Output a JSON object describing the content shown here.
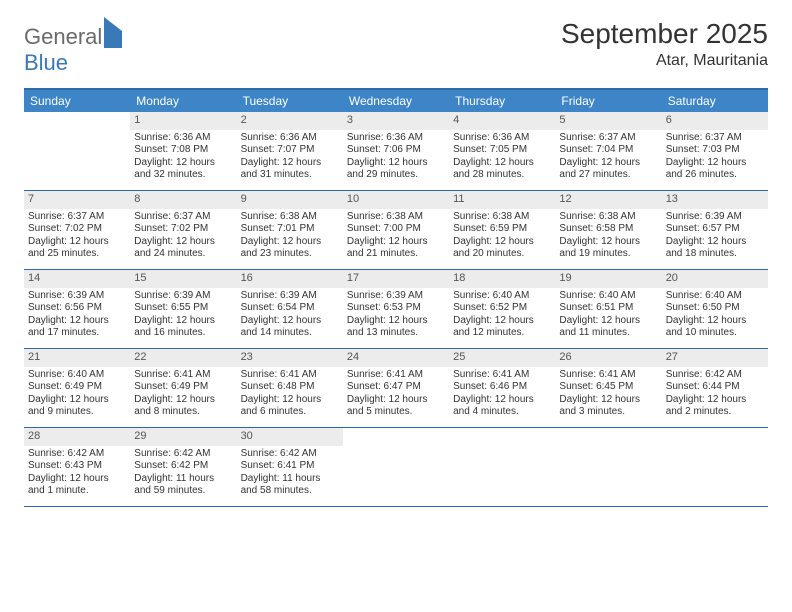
{
  "brand": {
    "part1": "General",
    "part2": "Blue"
  },
  "title": "September 2025",
  "location": "Atar, Mauritania",
  "colors": {
    "header_bg": "#3d85c6",
    "header_text": "#ffffff",
    "rule": "#2f6aa8",
    "daynum_bg": "#ececec",
    "body_text": "#333333",
    "brand_gray": "#6b6b6b",
    "brand_blue": "#3a79b7",
    "page_bg": "#ffffff"
  },
  "day_headers": [
    "Sunday",
    "Monday",
    "Tuesday",
    "Wednesday",
    "Thursday",
    "Friday",
    "Saturday"
  ],
  "weeks": [
    [
      null,
      {
        "n": "1",
        "sr": "Sunrise: 6:36 AM",
        "ss": "Sunset: 7:08 PM",
        "d1": "Daylight: 12 hours",
        "d2": "and 32 minutes."
      },
      {
        "n": "2",
        "sr": "Sunrise: 6:36 AM",
        "ss": "Sunset: 7:07 PM",
        "d1": "Daylight: 12 hours",
        "d2": "and 31 minutes."
      },
      {
        "n": "3",
        "sr": "Sunrise: 6:36 AM",
        "ss": "Sunset: 7:06 PM",
        "d1": "Daylight: 12 hours",
        "d2": "and 29 minutes."
      },
      {
        "n": "4",
        "sr": "Sunrise: 6:36 AM",
        "ss": "Sunset: 7:05 PM",
        "d1": "Daylight: 12 hours",
        "d2": "and 28 minutes."
      },
      {
        "n": "5",
        "sr": "Sunrise: 6:37 AM",
        "ss": "Sunset: 7:04 PM",
        "d1": "Daylight: 12 hours",
        "d2": "and 27 minutes."
      },
      {
        "n": "6",
        "sr": "Sunrise: 6:37 AM",
        "ss": "Sunset: 7:03 PM",
        "d1": "Daylight: 12 hours",
        "d2": "and 26 minutes."
      }
    ],
    [
      {
        "n": "7",
        "sr": "Sunrise: 6:37 AM",
        "ss": "Sunset: 7:02 PM",
        "d1": "Daylight: 12 hours",
        "d2": "and 25 minutes."
      },
      {
        "n": "8",
        "sr": "Sunrise: 6:37 AM",
        "ss": "Sunset: 7:02 PM",
        "d1": "Daylight: 12 hours",
        "d2": "and 24 minutes."
      },
      {
        "n": "9",
        "sr": "Sunrise: 6:38 AM",
        "ss": "Sunset: 7:01 PM",
        "d1": "Daylight: 12 hours",
        "d2": "and 23 minutes."
      },
      {
        "n": "10",
        "sr": "Sunrise: 6:38 AM",
        "ss": "Sunset: 7:00 PM",
        "d1": "Daylight: 12 hours",
        "d2": "and 21 minutes."
      },
      {
        "n": "11",
        "sr": "Sunrise: 6:38 AM",
        "ss": "Sunset: 6:59 PM",
        "d1": "Daylight: 12 hours",
        "d2": "and 20 minutes."
      },
      {
        "n": "12",
        "sr": "Sunrise: 6:38 AM",
        "ss": "Sunset: 6:58 PM",
        "d1": "Daylight: 12 hours",
        "d2": "and 19 minutes."
      },
      {
        "n": "13",
        "sr": "Sunrise: 6:39 AM",
        "ss": "Sunset: 6:57 PM",
        "d1": "Daylight: 12 hours",
        "d2": "and 18 minutes."
      }
    ],
    [
      {
        "n": "14",
        "sr": "Sunrise: 6:39 AM",
        "ss": "Sunset: 6:56 PM",
        "d1": "Daylight: 12 hours",
        "d2": "and 17 minutes."
      },
      {
        "n": "15",
        "sr": "Sunrise: 6:39 AM",
        "ss": "Sunset: 6:55 PM",
        "d1": "Daylight: 12 hours",
        "d2": "and 16 minutes."
      },
      {
        "n": "16",
        "sr": "Sunrise: 6:39 AM",
        "ss": "Sunset: 6:54 PM",
        "d1": "Daylight: 12 hours",
        "d2": "and 14 minutes."
      },
      {
        "n": "17",
        "sr": "Sunrise: 6:39 AM",
        "ss": "Sunset: 6:53 PM",
        "d1": "Daylight: 12 hours",
        "d2": "and 13 minutes."
      },
      {
        "n": "18",
        "sr": "Sunrise: 6:40 AM",
        "ss": "Sunset: 6:52 PM",
        "d1": "Daylight: 12 hours",
        "d2": "and 12 minutes."
      },
      {
        "n": "19",
        "sr": "Sunrise: 6:40 AM",
        "ss": "Sunset: 6:51 PM",
        "d1": "Daylight: 12 hours",
        "d2": "and 11 minutes."
      },
      {
        "n": "20",
        "sr": "Sunrise: 6:40 AM",
        "ss": "Sunset: 6:50 PM",
        "d1": "Daylight: 12 hours",
        "d2": "and 10 minutes."
      }
    ],
    [
      {
        "n": "21",
        "sr": "Sunrise: 6:40 AM",
        "ss": "Sunset: 6:49 PM",
        "d1": "Daylight: 12 hours",
        "d2": "and 9 minutes."
      },
      {
        "n": "22",
        "sr": "Sunrise: 6:41 AM",
        "ss": "Sunset: 6:49 PM",
        "d1": "Daylight: 12 hours",
        "d2": "and 8 minutes."
      },
      {
        "n": "23",
        "sr": "Sunrise: 6:41 AM",
        "ss": "Sunset: 6:48 PM",
        "d1": "Daylight: 12 hours",
        "d2": "and 6 minutes."
      },
      {
        "n": "24",
        "sr": "Sunrise: 6:41 AM",
        "ss": "Sunset: 6:47 PM",
        "d1": "Daylight: 12 hours",
        "d2": "and 5 minutes."
      },
      {
        "n": "25",
        "sr": "Sunrise: 6:41 AM",
        "ss": "Sunset: 6:46 PM",
        "d1": "Daylight: 12 hours",
        "d2": "and 4 minutes."
      },
      {
        "n": "26",
        "sr": "Sunrise: 6:41 AM",
        "ss": "Sunset: 6:45 PM",
        "d1": "Daylight: 12 hours",
        "d2": "and 3 minutes."
      },
      {
        "n": "27",
        "sr": "Sunrise: 6:42 AM",
        "ss": "Sunset: 6:44 PM",
        "d1": "Daylight: 12 hours",
        "d2": "and 2 minutes."
      }
    ],
    [
      {
        "n": "28",
        "sr": "Sunrise: 6:42 AM",
        "ss": "Sunset: 6:43 PM",
        "d1": "Daylight: 12 hours",
        "d2": "and 1 minute."
      },
      {
        "n": "29",
        "sr": "Sunrise: 6:42 AM",
        "ss": "Sunset: 6:42 PM",
        "d1": "Daylight: 11 hours",
        "d2": "and 59 minutes."
      },
      {
        "n": "30",
        "sr": "Sunrise: 6:42 AM",
        "ss": "Sunset: 6:41 PM",
        "d1": "Daylight: 11 hours",
        "d2": "and 58 minutes."
      },
      null,
      null,
      null,
      null
    ]
  ]
}
